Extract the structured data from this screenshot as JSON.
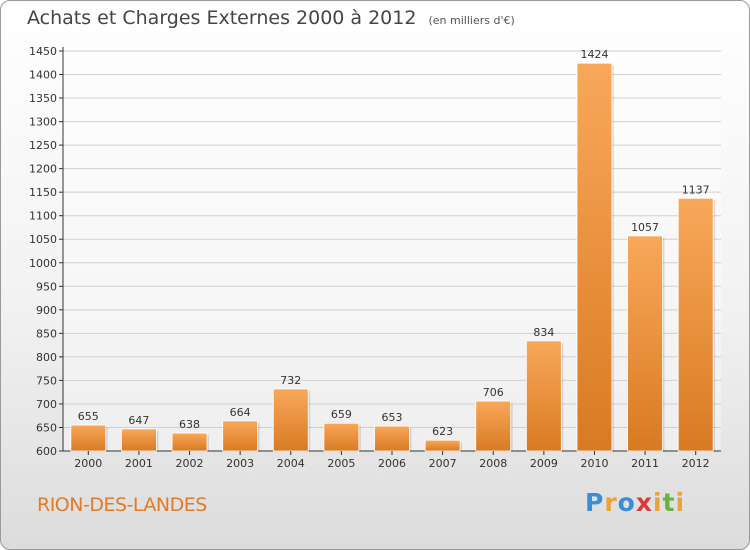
{
  "title": "Achats et Charges Externes 2000 à 2012",
  "subtitle": "(en milliers d'€)",
  "place_name": "RION-DES-LANDES",
  "brand": {
    "letters": [
      "P",
      "r",
      "o",
      "x",
      "i",
      "t",
      "i"
    ]
  },
  "colors": {
    "bar_light": "#f8a85a",
    "bar_dark": "#d97a22",
    "grid": "#d0d0d0",
    "axis": "#333333",
    "place": "#e07b28"
  },
  "chart_data": {
    "type": "bar",
    "categories": [
      "2000",
      "2001",
      "2002",
      "2003",
      "2004",
      "2005",
      "2006",
      "2007",
      "2008",
      "2009",
      "2010",
      "2011",
      "2012"
    ],
    "values": [
      655,
      647,
      638,
      664,
      732,
      659,
      653,
      623,
      706,
      834,
      1424,
      1057,
      1137
    ],
    "ylim": [
      600,
      1450
    ],
    "ytick_step": 50,
    "yticks": [
      "600",
      "650",
      "700",
      "750",
      "800",
      "850",
      "900",
      "950",
      "1000",
      "1050",
      "1100",
      "1150",
      "1200",
      "1250",
      "1300",
      "1350",
      "1400",
      "1450"
    ],
    "grid": true,
    "xlabel": "",
    "ylabel": ""
  }
}
